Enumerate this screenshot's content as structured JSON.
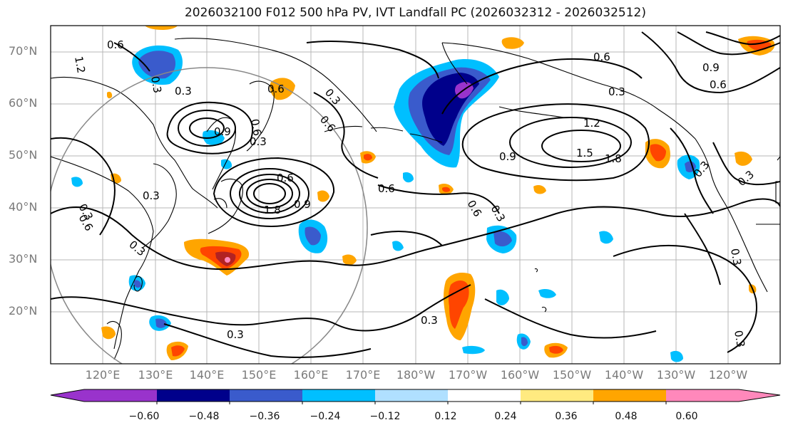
{
  "title": "2026032100 F012 500 hPa PV, IVT Landfall PC (2026032312 - 2026032512)",
  "lat_labels": [
    "70°N",
    "60°N",
    "50°N",
    "40°N",
    "30°N",
    "20°N"
  ],
  "lon_labels": [
    "120°E",
    "130°E",
    "140°E",
    "150°E",
    "160°E",
    "170°E",
    "180°W",
    "170°W",
    "160°W",
    "150°W",
    "140°W",
    "130°W",
    "120°W"
  ],
  "contour_labels": [
    "1.2",
    "0.6",
    "0.3",
    "0.3",
    "0.6",
    "0.3",
    "0.9",
    "0.6",
    "0.3",
    "0.6",
    "0.3",
    "0.3",
    "0.6",
    "1.8",
    "0.9",
    "0.6",
    "0.3",
    "0.3",
    "0.6",
    "0.3",
    "0.9",
    "1.5",
    "1.8",
    "1.2",
    "0.3",
    "0.6",
    "0.6",
    "0.9",
    "0.6",
    "0.3",
    "0.3",
    "0.3",
    "0.3",
    "0.3"
  ],
  "colorbar": {
    "ticks": [
      "−0.60",
      "−0.48",
      "−0.36",
      "−0.24",
      "−0.12",
      "0.12",
      "0.24",
      "0.36",
      "0.48",
      "0.60"
    ],
    "colors": [
      "#9933cc",
      "#00008b",
      "#3a5bcc",
      "#00bfff",
      "#b0e0ff",
      "#ffffff",
      "#ffea80",
      "#ffa500",
      "#ff4500",
      "#b22222",
      "#ff88bb"
    ]
  },
  "grid_color": "#999999",
  "circle_color": "#888888"
}
